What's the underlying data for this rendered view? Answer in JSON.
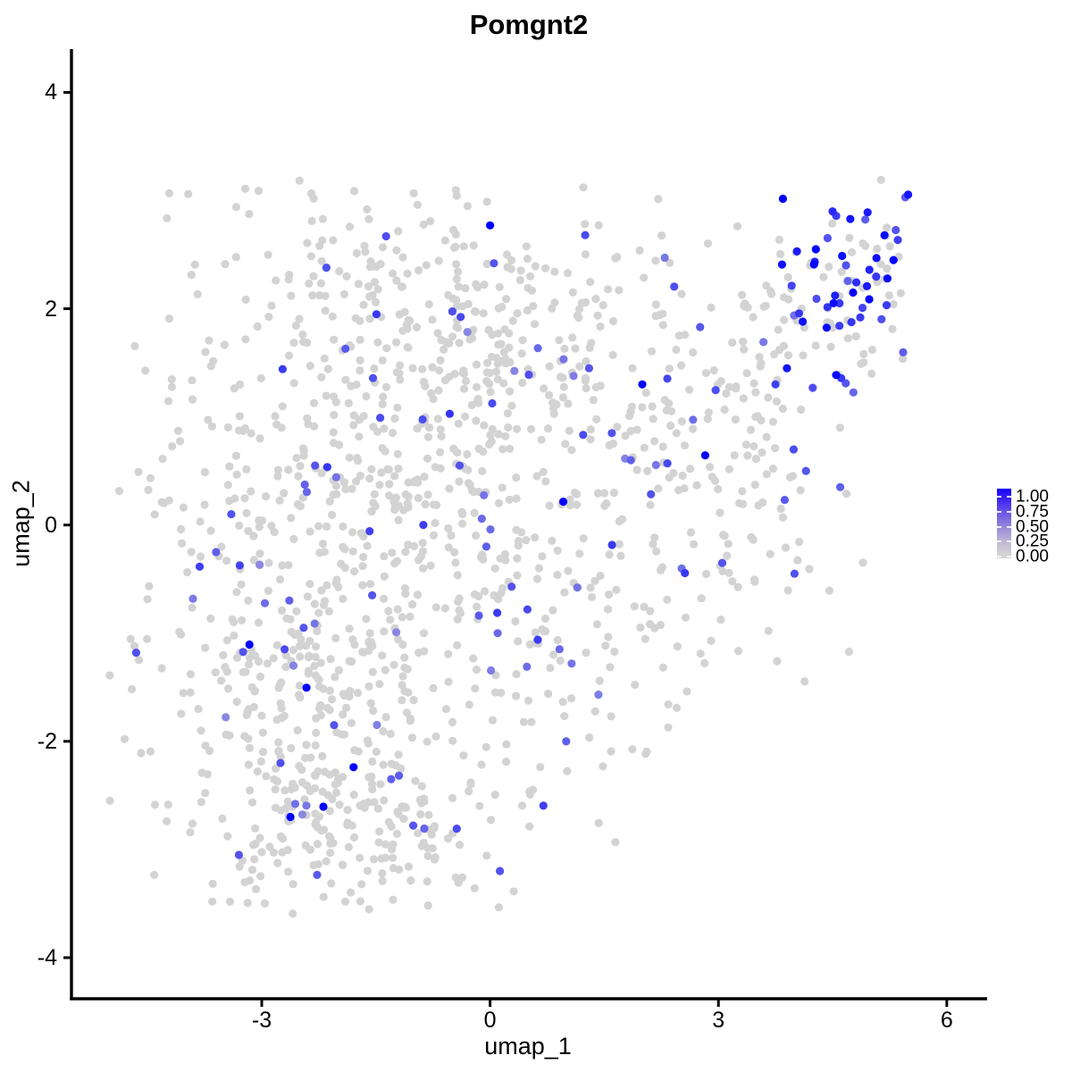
{
  "title": "Pomgnt2",
  "axes": {
    "x_label": "umap_1",
    "y_label": "umap_2"
  },
  "legend": {
    "position": "right",
    "labels": [
      "1.00",
      "0.75",
      "0.50",
      "0.25",
      "0.00"
    ],
    "gradient_stops": [
      {
        "color": "#1802FC",
        "pct": 0
      },
      {
        "color": "#3C24F2",
        "pct": 15
      },
      {
        "color": "#6C57E6",
        "pct": 35
      },
      {
        "color": "#9888DA",
        "pct": 55
      },
      {
        "color": "#BDB4D6",
        "pct": 74
      },
      {
        "color": "#D3D2D4",
        "pct": 93
      },
      {
        "color": "#D3D3D3",
        "pct": 100
      }
    ]
  },
  "chart_data": {
    "type": "scatter",
    "title": "Pomgnt2",
    "xlabel": "umap_1",
    "ylabel": "umap_2",
    "x_ticks": [
      -3,
      0,
      3,
      6
    ],
    "y_ticks": [
      4,
      2,
      0,
      -2,
      -4
    ],
    "x_range": [
      -5.5,
      6.53
    ],
    "y_range": [
      -4.38,
      4.4
    ],
    "grid": false,
    "legend_breaks": [
      1.0,
      0.75,
      0.5,
      0.25,
      0.0
    ],
    "point_radius": 4.6,
    "color_low": "#D3D3D3",
    "color_high": "#0000FF",
    "seed": 7,
    "clip": {
      "x": [
        -5.0,
        5.5
      ],
      "y": [
        -3.62,
        3.2
      ]
    },
    "clusters_format": "[count, center_x, center_y, sigma_x, sigma_y, rot_deg, colored_rate, high_expression_flag]",
    "clusters": [
      [
        130,
        -1.2,
        2.3,
        1.35,
        0.45,
        -8,
        0.05,
        0
      ],
      [
        200,
        -1.7,
        1.05,
        1.35,
        0.7,
        0,
        0.05,
        0
      ],
      [
        230,
        -2.0,
        -0.45,
        1.25,
        0.75,
        0,
        0.045,
        0
      ],
      [
        300,
        -2.35,
        -2.1,
        1.05,
        0.8,
        10,
        0.035,
        0
      ],
      [
        90,
        -1.35,
        -2.95,
        0.8,
        0.35,
        0,
        0.03,
        0
      ],
      [
        150,
        0.25,
        0.3,
        0.95,
        1.05,
        0,
        0.05,
        0
      ],
      [
        85,
        0.3,
        1.85,
        0.8,
        0.55,
        0,
        0.06,
        0
      ],
      [
        50,
        0.8,
        -1.5,
        0.8,
        0.8,
        0,
        0.04,
        0
      ],
      [
        100,
        2.4,
        0.9,
        0.75,
        0.85,
        20,
        0.09,
        0
      ],
      [
        80,
        3.5,
        1.5,
        0.7,
        0.75,
        30,
        0.12,
        0
      ],
      [
        60,
        2.9,
        -0.6,
        0.85,
        0.7,
        25,
        0.06,
        0
      ],
      [
        95,
        4.7,
        2.2,
        0.5,
        0.45,
        35,
        0.55,
        1
      ],
      [
        6,
        -4.65,
        -1.2,
        0.12,
        0.15,
        0,
        0.0,
        0
      ]
    ],
    "highlights_format": "[umap_1, umap_2, expression_value_0_to_1]",
    "highlights": [
      [
        0.0,
        2.77,
        1.0
      ],
      [
        0.05,
        2.42,
        0.6
      ],
      [
        -2.15,
        2.38,
        0.62
      ],
      [
        -1.9,
        1.63,
        0.58
      ],
      [
        2.0,
        1.3,
        1.0
      ],
      [
        1.3,
        1.45,
        0.6
      ],
      [
        1.25,
        2.68,
        0.65
      ],
      [
        -3.4,
        0.1,
        0.6
      ],
      [
        -3.6,
        -0.25,
        0.55
      ],
      [
        -3.3,
        -3.05,
        0.6
      ],
      [
        4.0,
        -0.45,
        0.62
      ],
      [
        3.05,
        -0.35,
        0.6
      ],
      [
        5.3,
        2.45,
        1.0
      ],
      [
        5.22,
        2.28,
        0.95
      ],
      [
        4.28,
        2.55,
        1.0
      ],
      [
        4.5,
        2.9,
        0.8
      ],
      [
        -4.65,
        -1.18,
        0.62
      ],
      [
        1.0,
        -2.0,
        0.55
      ],
      [
        -1.3,
        -2.35,
        0.55
      ],
      [
        -2.05,
        -1.85,
        0.6
      ],
      [
        -2.45,
        -0.95,
        0.6
      ],
      [
        -2.7,
        -1.15,
        0.65
      ],
      [
        -1.55,
        -0.65,
        0.6
      ],
      [
        -2.3,
        0.55,
        0.6
      ],
      [
        -0.4,
        0.55,
        0.6
      ],
      [
        -0.05,
        -0.2,
        0.55
      ],
      [
        0.1,
        -1.0,
        0.5
      ],
      [
        1.6,
        0.85,
        0.6
      ],
      [
        1.85,
        0.6,
        0.55
      ],
      [
        3.75,
        1.3,
        0.7
      ],
      [
        3.9,
        1.45,
        0.9
      ],
      [
        4.15,
        0.5,
        0.6
      ],
      [
        4.6,
        0.35,
        0.55
      ]
    ]
  }
}
